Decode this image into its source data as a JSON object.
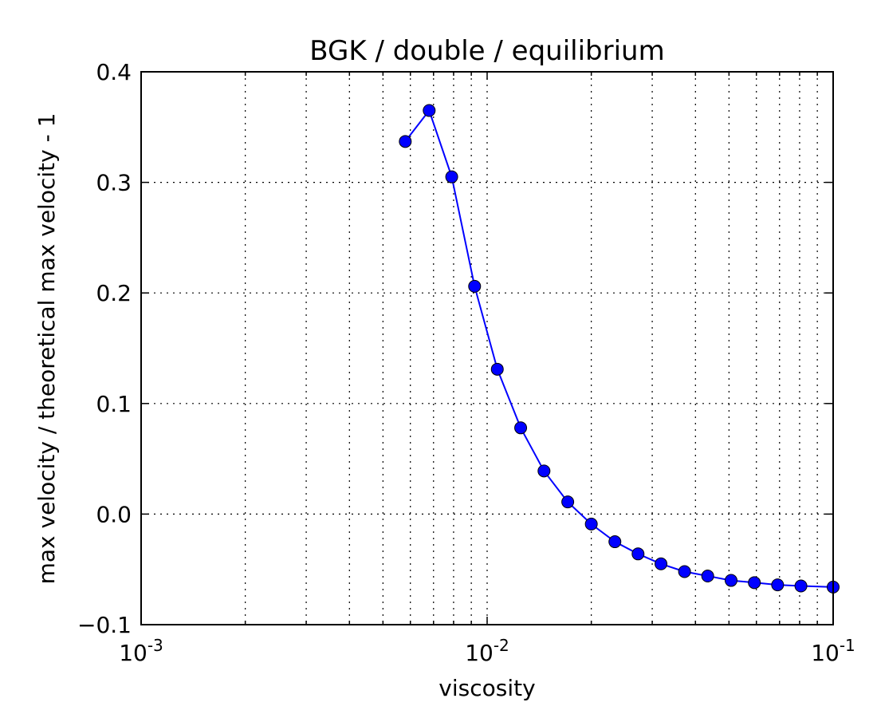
{
  "chart_data": {
    "type": "line",
    "title": "BGK / double / equilibrium",
    "xlabel": "viscosity",
    "ylabel": "max velocity / theoretical max velocity - 1",
    "xscale": "log",
    "xlim": [
      0.001,
      0.1
    ],
    "ylim": [
      -0.1,
      0.4
    ],
    "grid": true,
    "x_ticks": [
      {
        "value": 0.001,
        "base": "10",
        "exp": "-3"
      },
      {
        "value": 0.01,
        "base": "10",
        "exp": "-2"
      },
      {
        "value": 0.1,
        "base": "10",
        "exp": "-1"
      }
    ],
    "y_ticks": [
      {
        "value": 0.4,
        "label": "0.4"
      },
      {
        "value": 0.3,
        "label": "0.3"
      },
      {
        "value": 0.2,
        "label": "0.2"
      },
      {
        "value": 0.1,
        "label": "0.1"
      },
      {
        "value": 0.0,
        "label": "0.0"
      },
      {
        "value": -0.1,
        "label": "−0.1"
      }
    ],
    "series": [
      {
        "color": "#0000ff",
        "marker": "circle",
        "x": [
          0.0058,
          0.0068,
          0.0079,
          0.0092,
          0.0107,
          0.0125,
          0.0146,
          0.0171,
          0.02,
          0.0234,
          0.0273,
          0.0318,
          0.0372,
          0.0434,
          0.0507,
          0.0592,
          0.0691,
          0.0807,
          0.1
        ],
        "y": [
          0.337,
          0.365,
          0.305,
          0.206,
          0.131,
          0.078,
          0.039,
          0.011,
          -0.009,
          -0.025,
          -0.036,
          -0.045,
          -0.052,
          -0.056,
          -0.06,
          -0.062,
          -0.064,
          -0.065,
          -0.066
        ]
      }
    ]
  }
}
